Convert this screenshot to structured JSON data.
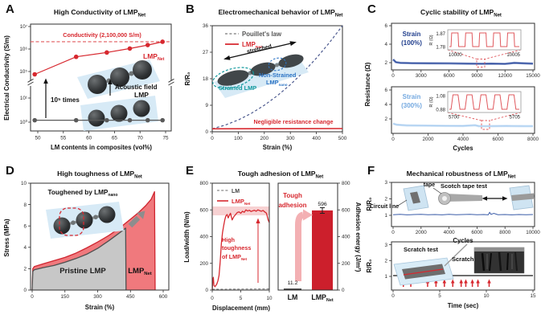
{
  "figure": {
    "background": "#ffffff"
  },
  "common": {
    "lmp": "LMP",
    "net": "Net",
    "nano": "nano"
  },
  "panels": {
    "a_letter": "A",
    "b_letter": "B",
    "c_letter": "C",
    "d_letter": "D",
    "e_letter": "E",
    "f_letter": "F"
  },
  "chart_data": [
    {
      "panel": "A",
      "type": "line",
      "title_prefix": "High Conductivity of ",
      "xlabel": "LM contents in composites (vol%)",
      "ylabel": "Electrical Conductivity (S/m)",
      "x_ticks": [
        50,
        55,
        60,
        65,
        70,
        75
      ],
      "y_tick_labels": [
        "10⁷",
        "10⁶",
        "10⁵",
        "10¹",
        "10⁰"
      ],
      "y_axis_break": true,
      "reference_line": {
        "label": "Conductivity (2,100,000 S/m)",
        "value_S_per_m": 2100000,
        "color": "#e0595e"
      },
      "annotations": {
        "times": "10⁵ times",
        "acoustic": "Acoustic field",
        "lmp_plain": "LMP"
      },
      "series": [
        {
          "name": "LMP_Net",
          "color": "#d7282f",
          "x": [
            49.4,
            57.5,
            63.5,
            68.0,
            71.5,
            74.4
          ],
          "y": [
            75000,
            450000,
            700000,
            1050000,
            1500000,
            2100000
          ]
        },
        {
          "name": "LMP",
          "color": "#5a5a5a",
          "x": [
            49.4,
            57.5,
            63.5,
            68.0,
            71.5,
            74.4
          ],
          "y": [
            1.2,
            1.2,
            1.2,
            1.2,
            1.2,
            1.2
          ]
        }
      ]
    },
    {
      "panel": "B",
      "type": "line",
      "title_prefix": "Electromechanical behavior of ",
      "xlabel": "Strain (%)",
      "ylabel": "R/R₀",
      "x_ticks": [
        0,
        100,
        200,
        300,
        400,
        500
      ],
      "y_ticks": [
        0,
        9,
        18,
        27,
        36
      ],
      "legend": {
        "pouillet": "Pouillet's law"
      },
      "annotations": {
        "negligible": "Negligible resistance change",
        "stretched": "stretched",
        "strained": "Strained LMP",
        "nonstrained": "Non-Strained"
      },
      "series": [
        {
          "name": "Pouillet's law",
          "style": "dashed",
          "color": "#4d5a8f",
          "x": [
            0,
            50,
            100,
            150,
            200,
            250,
            300,
            350,
            400,
            450,
            500
          ],
          "y": [
            1,
            2.25,
            4,
            6.25,
            9,
            12.25,
            16,
            20.25,
            25,
            30.25,
            36
          ]
        },
        {
          "name": "LMP_Net",
          "style": "solid",
          "color": "#d7282f",
          "x": [
            0,
            500
          ],
          "y": [
            1.0,
            1.1
          ]
        }
      ]
    },
    {
      "panel": "C",
      "type": "line",
      "title_prefix": "Cyclic stability of ",
      "ylabel": "Resistance (Ω)",
      "xlabel": "Cycles",
      "subplots": [
        {
          "strain_label": [
            "Strain",
            "(100%)"
          ],
          "label_color": "#1f3d8c",
          "x_ticks": [
            0,
            3000,
            6000,
            9000,
            12000,
            15000
          ],
          "y_ticks": [
            2,
            4,
            6
          ],
          "trace_color": "#2b4a9e",
          "trace_x": [
            0,
            300,
            800,
            2000,
            4000,
            6000,
            8000,
            9500,
            10500,
            12000,
            13000,
            14000,
            15000
          ],
          "trace_y": [
            2.35,
            2.05,
            1.97,
            1.95,
            1.93,
            1.92,
            1.9,
            1.88,
            1.9,
            1.87,
            1.97,
            1.93,
            1.9
          ],
          "inset": {
            "ylabel": "R (Ω)",
            "y_hi": "1.87",
            "y_lo": "1.78",
            "x_start": "10000",
            "x_end": "10005"
          }
        },
        {
          "strain_label": [
            "Strain",
            "(300%)"
          ],
          "label_color": "#74a9e0",
          "x_ticks": [
            0,
            2000,
            4000,
            6000,
            8000
          ],
          "y_ticks": [
            2,
            4,
            6
          ],
          "trace_color": "#a9cdf0",
          "trace_x": [
            0,
            200,
            800,
            2000,
            3000,
            4000,
            4700,
            4900,
            5600,
            6500,
            7500,
            8000
          ],
          "trace_y": [
            1.35,
            1.2,
            1.1,
            1.07,
            1.05,
            1.03,
            1.12,
            1.0,
            1.0,
            1.02,
            1.0,
            1.0
          ],
          "inset": {
            "ylabel": "R (Ω)",
            "y_hi": "1.08",
            "y_lo": "0.88",
            "x_start": "5700",
            "x_end": "5705"
          }
        }
      ]
    },
    {
      "panel": "D",
      "type": "area",
      "title_prefix": "High toughness of ",
      "xlabel": "Strain (%)",
      "ylabel": "Stress (MPa)",
      "x_ticks": [
        0,
        150,
        300,
        450,
        600
      ],
      "y_ticks": [
        0,
        2,
        4,
        6,
        8,
        10
      ],
      "annotations": {
        "toughened": "Toughened by LMP",
        "pristine": "Pristine LMP"
      },
      "series": [
        {
          "name": "LMP_Net",
          "fill": "#f0797d",
          "stroke": "#cf2630",
          "x": [
            0,
            3,
            10,
            50,
            100,
            150,
            200,
            250,
            300,
            350,
            400,
            430,
            460,
            490,
            520,
            545,
            560,
            563
          ],
          "y": [
            0,
            2.0,
            2.2,
            2.45,
            2.75,
            3.05,
            3.45,
            3.95,
            4.5,
            5.1,
            5.8,
            6.3,
            6.8,
            7.3,
            7.9,
            8.5,
            9.2,
            0
          ]
        },
        {
          "name": "Pristine LMP",
          "fill": "#c7c7c7",
          "stroke": "#4f4f4f",
          "x": [
            0,
            3,
            10,
            50,
            100,
            150,
            200,
            250,
            300,
            350,
            400,
            425,
            428,
            430
          ],
          "y": [
            0,
            1.75,
            1.9,
            2.1,
            2.3,
            2.6,
            2.95,
            3.35,
            3.9,
            4.6,
            5.35,
            5.75,
            5.8,
            0
          ]
        }
      ]
    },
    {
      "panel": "E",
      "type": "line+bar",
      "title_prefix": "Tough adhesion of ",
      "left": {
        "xlabel": "Displacement (mm)",
        "ylabel": "Load/width (N/m)",
        "x_ticks": [
          0,
          5,
          10
        ],
        "y_ticks": [
          0,
          200,
          400,
          600,
          800
        ],
        "legend": {
          "lm": "LM"
        },
        "annotations": {
          "high": [
            "High",
            "toughness",
            "of LMP"
          ]
        },
        "plateau_band": [
          565,
          625
        ],
        "series": [
          {
            "name": "LM",
            "style": "dashed",
            "color": "#8a8a8a",
            "x": [
              0,
              10
            ],
            "y": [
              6,
              9
            ]
          },
          {
            "name": "LMP_Net",
            "style": "solid",
            "color": "#d7282f",
            "x": [
              0,
              0.1,
              0.2,
              0.3,
              0.5,
              0.8,
              1.0,
              1.2,
              1.4,
              1.6,
              1.8,
              2.0,
              2.2,
              2.4,
              2.6,
              2.8,
              3.0,
              3.2,
              3.5,
              3.8,
              4.1,
              4.4,
              4.7,
              5.0,
              5.3,
              5.6,
              5.9,
              6.2,
              6.5,
              6.8,
              7.1,
              7.4,
              7.7,
              8.0,
              8.3,
              8.6,
              8.9,
              9.2,
              9.5,
              9.8,
              10.0
            ],
            "y": [
              0,
              70,
              95,
              35,
              25,
              45,
              70,
              110,
              210,
              350,
              430,
              480,
              525,
              555,
              565,
              540,
              560,
              575,
              525,
              550,
              565,
              580,
              585,
              575,
              590,
              582,
              600,
              592,
              597,
              588,
              593,
              597,
              590,
              600,
              595,
              590,
              596,
              585,
              575,
              525,
              505
            ]
          }
        ]
      },
      "right": {
        "ylabel": "Adhesion energy (J/m²)",
        "y_ticks": [
          0,
          200,
          400,
          600,
          800
        ],
        "categories": [
          "LM",
          "LMP_Net"
        ],
        "values": [
          11.2,
          596
        ],
        "value_labels": [
          "11.2",
          "596"
        ],
        "bar_colors": [
          "#3f3f3f",
          "#cc1f2c"
        ],
        "annotations": {
          "tough": [
            "Tough",
            "adhesion"
          ]
        }
      }
    },
    {
      "panel": "F",
      "type": "line",
      "title_prefix": "Mechanical robustness of ",
      "subplots": [
        {
          "ylabel": "R/R₀",
          "xlabel": "Cycles",
          "x_ticks": [
            0,
            2000,
            4000,
            6000,
            8000,
            10000
          ],
          "y_ticks": [
            1,
            2,
            3
          ],
          "trace_color": "#3a5ca8",
          "trace_x": [
            0,
            500,
            1000,
            1500,
            2000,
            2500,
            3000,
            3500,
            4000,
            4500,
            5000,
            5500,
            6000,
            6500,
            6800,
            6900,
            7000,
            7200,
            7500,
            8000,
            8500,
            9000,
            9500,
            10000
          ],
          "trace_y": [
            1.04,
            1.06,
            1.03,
            1.05,
            1.06,
            1.04,
            1.05,
            1.03,
            1.06,
            1.04,
            1.05,
            1.06,
            1.04,
            1.05,
            1.03,
            1.18,
            1.06,
            1.12,
            1.04,
            1.05,
            1.03,
            1.05,
            1.04,
            1.05
          ],
          "annotations": {
            "tape": "tape",
            "scotch": "Scotch tape test",
            "circuit": "Circuit line"
          }
        },
        {
          "ylabel": "R/R₀",
          "xlabel": "Time (sec)",
          "x_ticks": [
            0,
            5,
            10,
            15
          ],
          "y_ticks": [
            1,
            2,
            3
          ],
          "trace_color": "#3f3f3f",
          "trace_x": [
            0,
            15
          ],
          "trace_y": [
            1.05,
            1.05
          ],
          "scratch_times": [
            1.1,
            1.9,
            3.7,
            4.6,
            5.5,
            6.4,
            7.3,
            7.8,
            8.5,
            9.1,
            10.3
          ],
          "annotations": {
            "scratch_test": "Scratch test",
            "scratch": "Scratch"
          }
        }
      ]
    }
  ]
}
